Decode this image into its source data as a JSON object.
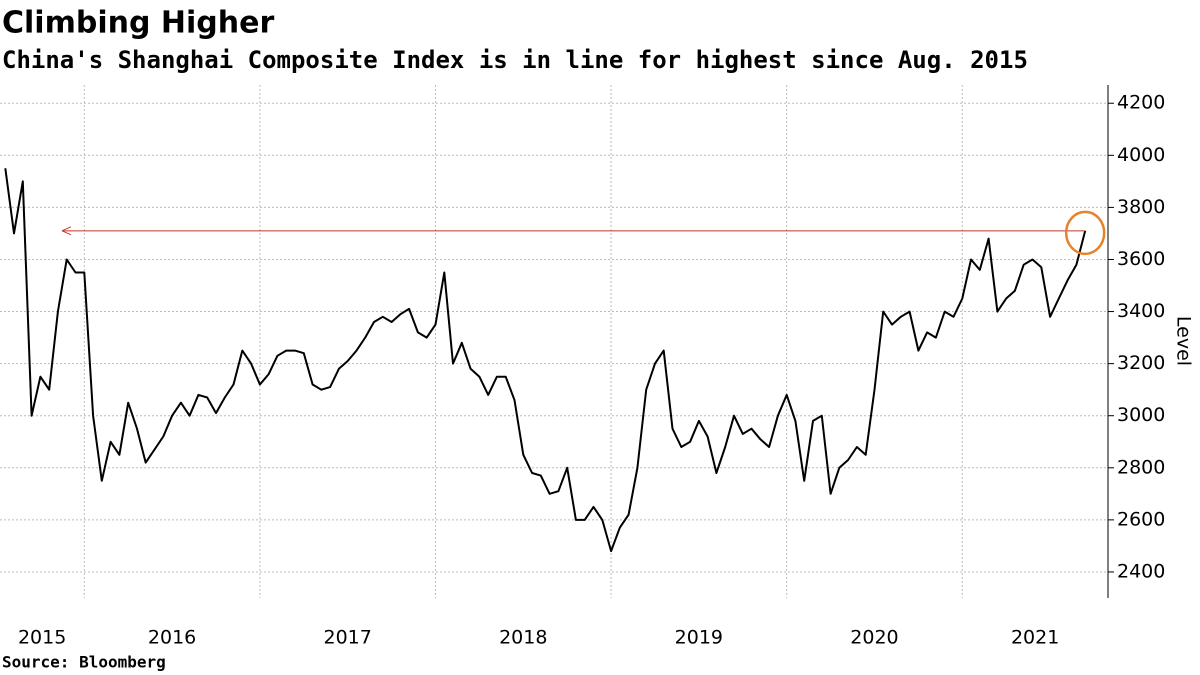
{
  "chart_data": {
    "type": "line",
    "title": "Climbing Higher",
    "subtitle": "China's Shanghai Composite Index is in line for highest since Aug. 2015",
    "ylabel": "Level",
    "source": "Source: Bloomberg",
    "x": [
      2015.55,
      2015.6,
      2015.65,
      2015.7,
      2015.75,
      2015.8,
      2015.85,
      2015.9,
      2015.95,
      2016.0,
      2016.05,
      2016.1,
      2016.15,
      2016.2,
      2016.25,
      2016.3,
      2016.35,
      2016.4,
      2016.45,
      2016.5,
      2016.55,
      2016.6,
      2016.65,
      2016.7,
      2016.75,
      2016.8,
      2016.85,
      2016.9,
      2016.95,
      2017.0,
      2017.05,
      2017.1,
      2017.15,
      2017.2,
      2017.25,
      2017.3,
      2017.35,
      2017.4,
      2017.45,
      2017.5,
      2017.55,
      2017.6,
      2017.65,
      2017.7,
      2017.75,
      2017.8,
      2017.85,
      2017.9,
      2017.95,
      2018.0,
      2018.05,
      2018.1,
      2018.15,
      2018.2,
      2018.25,
      2018.3,
      2018.35,
      2018.4,
      2018.45,
      2018.5,
      2018.55,
      2018.6,
      2018.65,
      2018.7,
      2018.75,
      2018.8,
      2018.85,
      2018.9,
      2018.95,
      2019.0,
      2019.05,
      2019.1,
      2019.15,
      2019.2,
      2019.25,
      2019.3,
      2019.35,
      2019.4,
      2019.45,
      2019.5,
      2019.55,
      2019.6,
      2019.65,
      2019.7,
      2019.75,
      2019.8,
      2019.85,
      2019.9,
      2019.95,
      2020.0,
      2020.05,
      2020.1,
      2020.15,
      2020.2,
      2020.25,
      2020.3,
      2020.35,
      2020.4,
      2020.45,
      2020.5,
      2020.55,
      2020.6,
      2020.65,
      2020.7,
      2020.75,
      2020.8,
      2020.85,
      2020.9,
      2020.95,
      2021.0,
      2021.05,
      2021.1,
      2021.15,
      2021.2,
      2021.25,
      2021.3,
      2021.35,
      2021.4,
      2021.45,
      2021.5,
      2021.55,
      2021.6,
      2021.65,
      2021.7
    ],
    "series": [
      {
        "name": "Shanghai Composite Index",
        "color": "#000000",
        "values": [
          3950,
          3700,
          3900,
          3000,
          3150,
          3100,
          3400,
          3600,
          3550,
          3550,
          3000,
          2750,
          2900,
          2850,
          3050,
          2950,
          2820,
          2870,
          2920,
          3000,
          3050,
          3000,
          3080,
          3070,
          3010,
          3070,
          3120,
          3250,
          3200,
          3120,
          3160,
          3230,
          3250,
          3250,
          3240,
          3120,
          3100,
          3110,
          3180,
          3210,
          3250,
          3300,
          3360,
          3380,
          3360,
          3390,
          3410,
          3320,
          3300,
          3350,
          3550,
          3200,
          3280,
          3180,
          3150,
          3080,
          3150,
          3150,
          3060,
          2850,
          2780,
          2770,
          2700,
          2710,
          2800,
          2600,
          2600,
          2650,
          2600,
          2480,
          2570,
          2620,
          2800,
          3100,
          3200,
          3250,
          2950,
          2880,
          2900,
          2980,
          2920,
          2780,
          2880,
          3000,
          2930,
          2950,
          2910,
          2880,
          3000,
          3080,
          2980,
          2750,
          2980,
          3000,
          2700,
          2800,
          2830,
          2880,
          2850,
          3100,
          3400,
          3350,
          3380,
          3400,
          3250,
          3320,
          3300,
          3400,
          3380,
          3450,
          3600,
          3560,
          3680,
          3400,
          3450,
          3480,
          3580,
          3600,
          3570,
          3380,
          3450,
          3520,
          3580,
          3710
        ]
      }
    ],
    "xlim": [
      2015.52,
      2021.83
    ],
    "xticks": [
      {
        "value": 2015,
        "label": "2015"
      },
      {
        "value": 2016,
        "label": "2016"
      },
      {
        "value": 2017,
        "label": "2017"
      },
      {
        "value": 2018,
        "label": "2018"
      },
      {
        "value": 2019,
        "label": "2019"
      },
      {
        "value": 2020,
        "label": "2020"
      },
      {
        "value": 2021,
        "label": "2021"
      }
    ],
    "ylim": [
      2300,
      4270
    ],
    "yticks": [
      2400,
      2600,
      2800,
      3000,
      3200,
      3400,
      3600,
      3800,
      4000,
      4200
    ],
    "grid": true,
    "y_axis_side": "right"
  }
}
